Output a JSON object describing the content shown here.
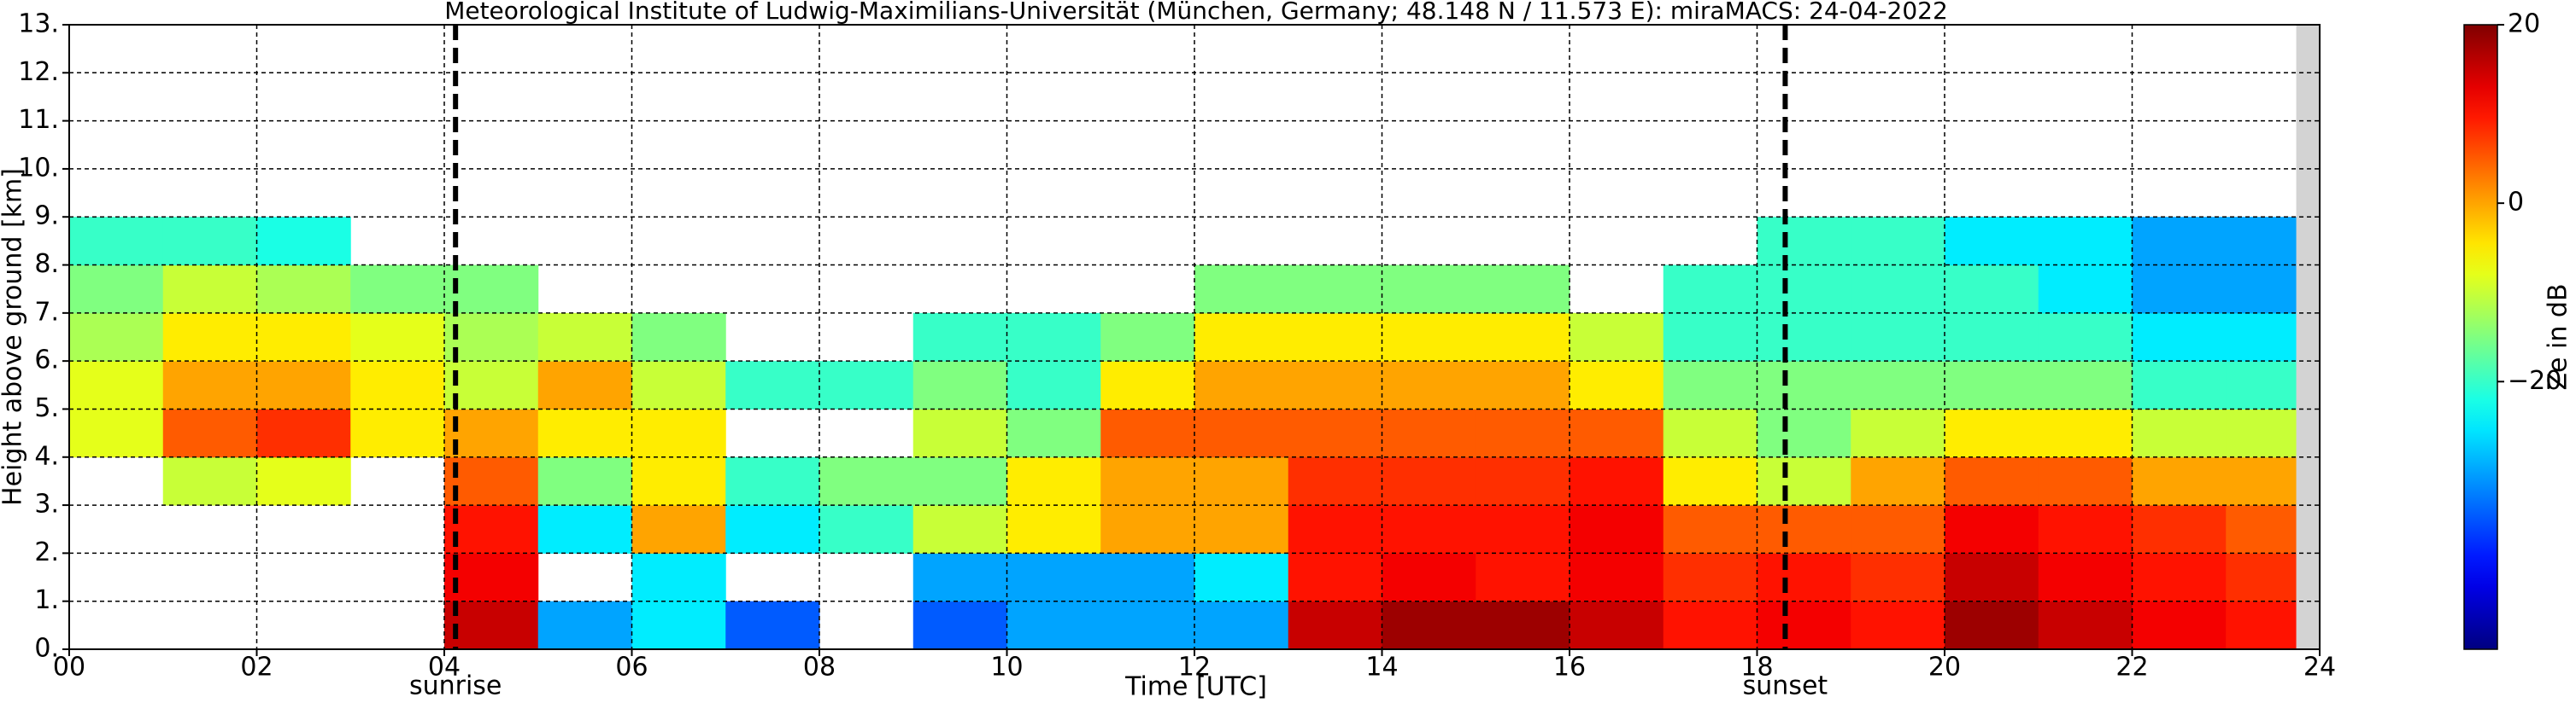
{
  "chart_data": {
    "type": "heatmap",
    "title": "Meteorological Institute of Ludwig-Maximilians-Universität (München, Germany; 48.148 N / 11.573 E):    miraMACS: 24-04-2022",
    "xlabel": "Time [UTC]",
    "ylabel": "Height above ground [km]",
    "xlim": [
      0,
      24
    ],
    "xticks": [
      {
        "value": 0,
        "label": "00"
      },
      {
        "value": 2,
        "label": "02"
      },
      {
        "value": 4,
        "label": "04"
      },
      {
        "value": 6,
        "label": "06"
      },
      {
        "value": 8,
        "label": "08"
      },
      10,
      12,
      14,
      16,
      18,
      20,
      22,
      24
    ],
    "ylim": [
      0,
      13
    ],
    "yticks": [
      {
        "value": 0,
        "label": "0."
      },
      {
        "value": 1,
        "label": "1."
      },
      {
        "value": 2,
        "label": "2."
      },
      {
        "value": 3,
        "label": "3."
      },
      {
        "value": 4,
        "label": "4."
      },
      {
        "value": 5,
        "label": "5."
      },
      {
        "value": 6,
        "label": "6."
      },
      {
        "value": 7,
        "label": "7."
      },
      {
        "value": 8,
        "label": "8."
      },
      {
        "value": 9,
        "label": "9."
      },
      {
        "value": 10,
        "label": "10."
      },
      {
        "value": 11,
        "label": "11."
      },
      {
        "value": 12,
        "label": "12."
      },
      {
        "value": 13,
        "label": "13."
      }
    ],
    "grid": true,
    "colormap": "jet",
    "x_bins": [
      0,
      1,
      2,
      3,
      4,
      5,
      6,
      7,
      8,
      9,
      10,
      11,
      12,
      13,
      14,
      15,
      16,
      17,
      18,
      19,
      20,
      21,
      22,
      23,
      24
    ],
    "y_bins": [
      0,
      1,
      2,
      3,
      4,
      5,
      6,
      7,
      8,
      9
    ],
    "z": [
      [
        null,
        null,
        null,
        null,
        15,
        -30,
        -25,
        -35,
        null,
        -35,
        -30,
        -30,
        -30,
        15,
        18,
        18,
        15,
        10,
        12,
        10,
        18,
        15,
        12,
        10
      ],
      [
        null,
        null,
        null,
        null,
        12,
        null,
        -25,
        null,
        null,
        -30,
        -30,
        -30,
        -25,
        10,
        12,
        10,
        12,
        8,
        10,
        8,
        15,
        12,
        10,
        8
      ],
      [
        null,
        null,
        null,
        null,
        10,
        -25,
        0,
        -25,
        -20,
        -10,
        -5,
        0,
        0,
        10,
        10,
        10,
        12,
        5,
        5,
        5,
        12,
        10,
        8,
        5
      ],
      [
        null,
        -10,
        -8,
        null,
        5,
        -15,
        -5,
        -20,
        -15,
        -15,
        -5,
        0,
        0,
        8,
        8,
        8,
        10,
        -5,
        -10,
        0,
        5,
        5,
        0,
        0
      ],
      [
        -8,
        5,
        8,
        -5,
        0,
        -5,
        -5,
        null,
        null,
        -10,
        -15,
        5,
        5,
        5,
        5,
        5,
        5,
        -10,
        -15,
        -10,
        -5,
        -5,
        -10,
        -10
      ],
      [
        -8,
        0,
        0,
        -5,
        -10,
        0,
        -10,
        -20,
        -20,
        -15,
        -20,
        -5,
        0,
        0,
        0,
        0,
        -5,
        -15,
        -15,
        -15,
        -15,
        -15,
        -20,
        -20
      ],
      [
        -12,
        -5,
        -5,
        -8,
        -12,
        -10,
        -15,
        null,
        null,
        -20,
        -20,
        -15,
        -5,
        -5,
        -5,
        -5,
        -10,
        -20,
        -20,
        -20,
        -20,
        -20,
        -25,
        -25
      ],
      [
        -15,
        -10,
        -12,
        -15,
        -15,
        null,
        null,
        null,
        null,
        null,
        null,
        null,
        -15,
        -15,
        -15,
        -15,
        null,
        -20,
        -20,
        -20,
        -20,
        -25,
        -30,
        -30
      ],
      [
        -20,
        -20,
        -22,
        null,
        null,
        null,
        null,
        null,
        null,
        null,
        null,
        null,
        null,
        null,
        null,
        null,
        null,
        null,
        -20,
        -20,
        -25,
        -25,
        -30,
        -30
      ]
    ],
    "annotations": [
      {
        "text": "sunrise",
        "x": 4.12
      },
      {
        "text": "sunset",
        "x": 18.3
      }
    ],
    "colorbar": {
      "label": "Ze in dB",
      "zlim": [
        -50,
        20
      ],
      "ticks": [
        20,
        0,
        {
          "value": -20,
          "label": "−20"
        }
      ]
    }
  }
}
